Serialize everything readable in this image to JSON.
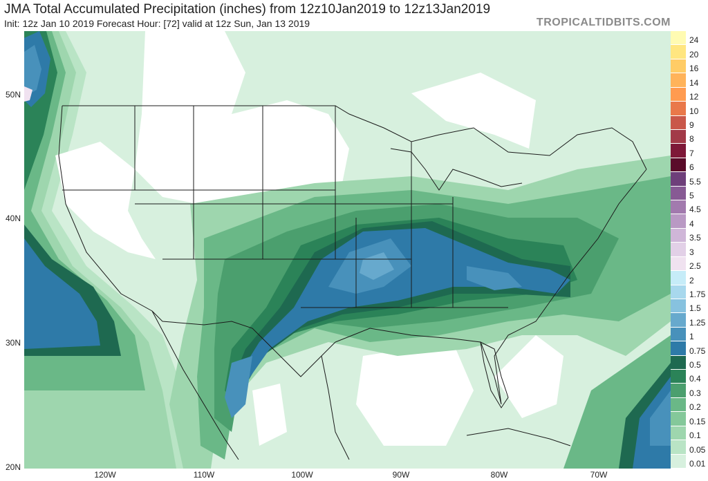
{
  "title": "JMA Total Accumulated Precipitation (inches) from 12z10Jan2019 to 12z13Jan2019",
  "subtitle": "Init: 12z Jan 10 2019   Forecast Hour: [72]   valid at 12z Sun, Jan 13 2019",
  "watermark": "TROPICALTIDBITS.COM",
  "lat_labels": [
    "50N",
    "40N",
    "30N",
    "20N"
  ],
  "lon_labels": [
    "120W",
    "110W",
    "100W",
    "90W",
    "80W",
    "70W"
  ],
  "legend": {
    "levels": [
      "24",
      "20",
      "16",
      "14",
      "12",
      "10",
      "9",
      "8",
      "7",
      "6",
      "5.5",
      "5",
      "4.5",
      "4",
      "3.5",
      "3",
      "2.5",
      "2",
      "1.75",
      "1.5",
      "1.25",
      "1",
      "0.75",
      "0.5",
      "0.4",
      "0.3",
      "0.2",
      "0.15",
      "0.1",
      "0.05",
      "0.01"
    ],
    "colors": [
      "#fffbb2",
      "#ffe680",
      "#ffcc66",
      "#ffb35a",
      "#ff9b50",
      "#e9784a",
      "#c9574a",
      "#a23a48",
      "#7e1838",
      "#5a0c2a",
      "#6e3f7a",
      "#875a94",
      "#a27aae",
      "#b999c4",
      "#cfb6d8",
      "#e2d0e7",
      "#f0e2f0",
      "#c6ecf8",
      "#a8d8ed",
      "#87c2df",
      "#67a9cd",
      "#4891bb",
      "#2e7aa8",
      "#1e6950",
      "#2b8358",
      "#4b9f6e",
      "#6ab887",
      "#84c89a",
      "#9ed6ae",
      "#b9e4c5",
      "#d7f0de"
    ]
  },
  "map": {
    "precip_colors": {
      "p001": "#d7f0de",
      "p005": "#b9e4c5",
      "p01": "#9ed6ae",
      "p015": "#84c89a",
      "p02": "#6ab887",
      "p03": "#4b9f6e",
      "p04": "#2b8358",
      "p05": "#1e6950",
      "p075": "#2e7aa8",
      "p1": "#4891bb",
      "p125": "#67a9cd",
      "p2": "#c6ecf8",
      "p25": "#f0e2f0",
      "border": "#1a1a1a",
      "dry": "#ffffff"
    }
  }
}
